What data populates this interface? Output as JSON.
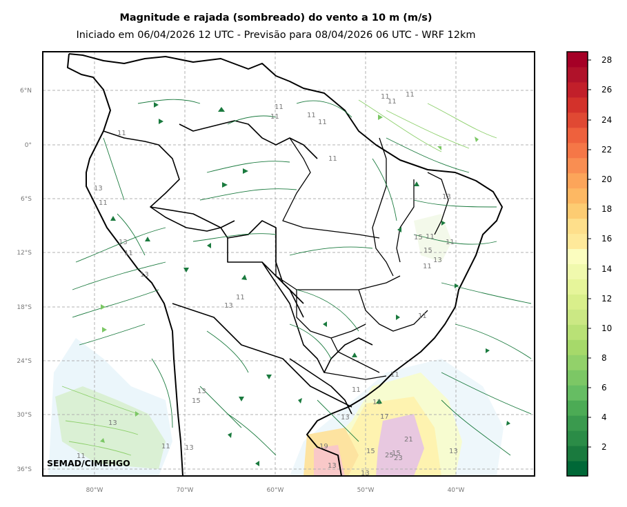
{
  "title": "Magnitude e rajada (sombreado) do vento a 10 m (m/s)",
  "subtitle": "Iniciado em 06/04/2026 12 UTC - Previsão para 08/04/2026 06 UTC - WRF 12km",
  "credit": "SEMAD/CIMEHGO",
  "lat_labels": [
    "6°N",
    "0°",
    "6°S",
    "12°S",
    "18°S",
    "24°S",
    "30°S",
    "36°S"
  ],
  "lon_labels": [
    "80°W",
    "70°W",
    "60°W",
    "50°W",
    "40°W"
  ],
  "colorbar": {
    "ticks": [
      "2",
      "4",
      "6",
      "8",
      "10",
      "12",
      "14",
      "16",
      "18",
      "20",
      "22",
      "24",
      "26",
      "28"
    ],
    "colors": [
      "#006837",
      "#1a7a3e",
      "#2b8c47",
      "#3a9a4e",
      "#4cab55",
      "#66bd63",
      "#7cc765",
      "#92d16a",
      "#a6d96a",
      "#b9e176",
      "#cbe884",
      "#d9ef8b",
      "#e6f59a",
      "#f0f9ad",
      "#fbfdbf",
      "#fee99a",
      "#fedf8b",
      "#fdcc72",
      "#fdb863",
      "#fca55a",
      "#f98e52",
      "#f57747",
      "#ee613d",
      "#e04933",
      "#d3322b",
      "#c21f2a",
      "#b0122a",
      "#a50026"
    ]
  },
  "contour_labels": [
    "11",
    "11",
    "11",
    "11",
    "11",
    "11",
    "11",
    "11",
    "11",
    "11",
    "11",
    "11",
    "11",
    "11",
    "11",
    "11",
    "11",
    "11",
    "11",
    "11",
    "11",
    "13",
    "13",
    "13",
    "13",
    "13",
    "13",
    "13",
    "13",
    "13",
    "13",
    "13",
    "13",
    "13",
    "15",
    "15",
    "15",
    "15",
    "15",
    "17",
    "19",
    "21",
    "23",
    "25"
  ]
}
